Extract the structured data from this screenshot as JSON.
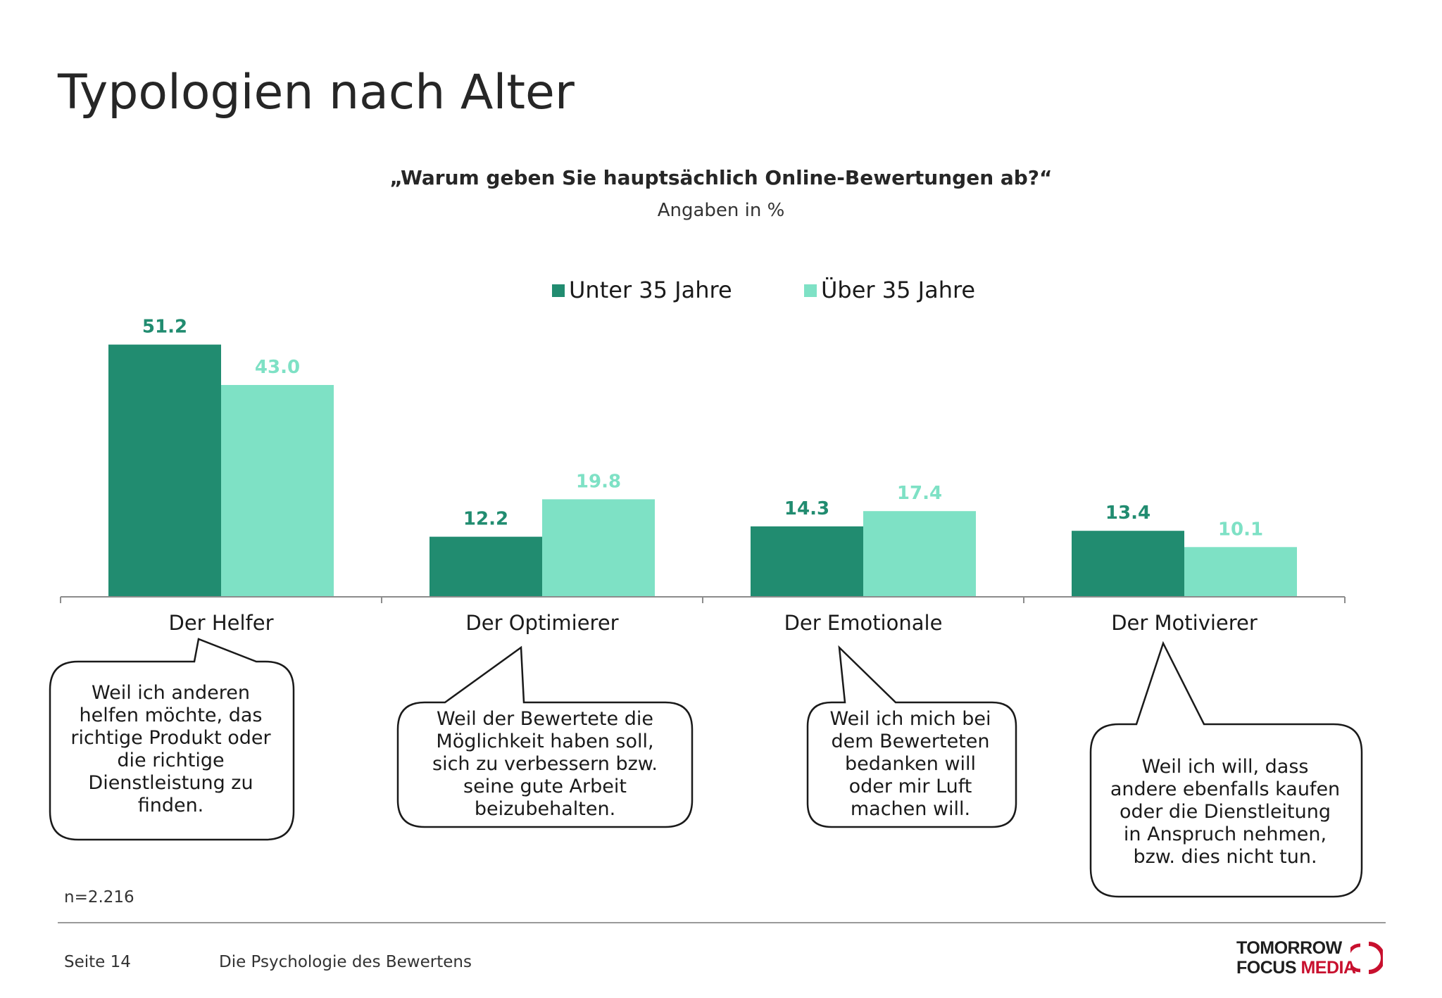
{
  "page": {
    "title": "Typologien nach Alter",
    "question": "„Warum geben Sie hauptsächlich Online-Bewertungen ab?“",
    "unit_note": "Angaben in %",
    "sample_size": "n=2.216"
  },
  "footer": {
    "page_number": "Seite 14",
    "title": "Die Psychologie des Bewertens",
    "logo_line1": "TOMORROW",
    "logo_line2_a": "FOCUS",
    "logo_line2_b": "MEDIA"
  },
  "colors": {
    "series_under_35": "#218c70",
    "series_over_35": "#7ee1c5",
    "logo_accent": "#c8102e"
  },
  "chart_data": {
    "type": "bar",
    "title": "„Warum geben Sie hauptsächlich Online-Bewertungen ab?“",
    "subtitle": "Angaben in %",
    "categories": [
      "Der Helfer",
      "Der Optimierer",
      "Der Emotionale",
      "Der Motivierer"
    ],
    "series": [
      {
        "name": "Unter 35 Jahre",
        "values": [
          51.2,
          12.2,
          14.3,
          13.4
        ]
      },
      {
        "name": "Über 35 Jahre",
        "values": [
          43.0,
          19.8,
          17.4,
          10.1
        ]
      }
    ],
    "value_labels": [
      [
        "51.2",
        "12.2",
        "14.3",
        "13.4"
      ],
      [
        "43.0",
        "19.8",
        "17.4",
        "10.1"
      ]
    ],
    "ylim": [
      0,
      55
    ],
    "grid": false,
    "legend": "top-center",
    "xlabel": "",
    "ylabel": ""
  },
  "callouts": [
    {
      "category": "Der Helfer",
      "text": "Weil ich anderen\nhelfen möchte, das\nrichtige Produkt oder\ndie richtige\nDienstleistung zu\nfinden."
    },
    {
      "category": "Der Optimierer",
      "text": "Weil der Bewertete die\nMöglichkeit haben soll,\nsich zu verbessern bzw.\nseine gute Arbeit\nbeizubehalten."
    },
    {
      "category": "Der Emotionale",
      "text": "Weil ich mich bei\ndem Bewerteten\nbedanken will\noder mir Luft\nmachen will."
    },
    {
      "category": "Der Motivierer",
      "text": "Weil ich will, dass\nandere ebenfalls kaufen\noder die Dienstleitung\nin Anspruch nehmen,\nbzw. dies nicht tun."
    }
  ]
}
